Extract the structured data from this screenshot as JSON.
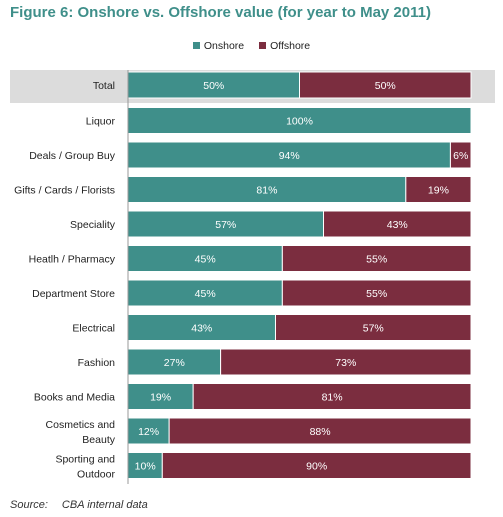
{
  "title": "Figure 6: Onshore vs. Offshore value (for year to May 2011)",
  "source": {
    "label": "Source:",
    "text": "CBA internal data"
  },
  "chart_data": {
    "type": "bar",
    "orientation": "horizontal",
    "stacked": true,
    "xlim": [
      0,
      100
    ],
    "legend_position": "top",
    "grid": false,
    "highlighted_category": "Total",
    "categories": [
      "Total",
      "Liquor",
      "Deals / Group Buy",
      "Gifts / Cards / Florists",
      "Speciality",
      "Heatlh / Pharmacy",
      "Department Store",
      "Electrical",
      "Fashion",
      "Books and Media",
      "Cosmetics and Beauty",
      "Sporting and Outdoor"
    ],
    "series": [
      {
        "name": "Onshore",
        "color": "#3f8f8a",
        "values": [
          50,
          100,
          94,
          81,
          57,
          45,
          45,
          43,
          27,
          19,
          12,
          10
        ]
      },
      {
        "name": "Offshore",
        "color": "#7b2d3f",
        "values": [
          50,
          0,
          6,
          19,
          43,
          55,
          55,
          57,
          73,
          81,
          88,
          90
        ]
      }
    ]
  }
}
